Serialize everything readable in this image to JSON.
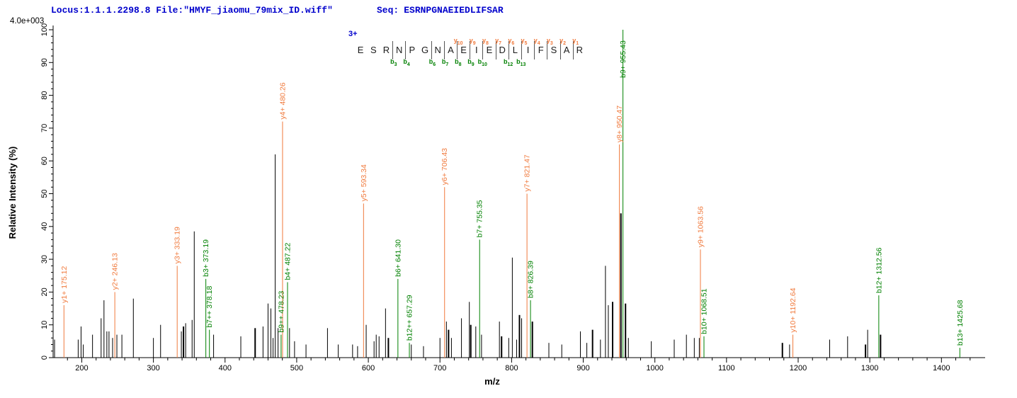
{
  "header": {
    "locus": "Locus:1.1.1.2298.8 File:\"HMYF_jiaomu_79mix_ID.wiff\"",
    "seq_label": "Seq:",
    "seq_value": "ESRNPGNAEIEDLIFSAR",
    "intensity_scale": "4.0e+003"
  },
  "peptide": {
    "charge": "3+",
    "residues": [
      "E",
      "S",
      "R",
      "N",
      "P",
      "G",
      "N",
      "A",
      "E",
      "I",
      "E",
      "D",
      "L",
      "I",
      "F",
      "S",
      "A",
      "R"
    ],
    "cleavages": [
      {
        "after": 3,
        "b": "b3"
      },
      {
        "after": 4,
        "b": "b4"
      },
      {
        "after": 6,
        "b": "b6"
      },
      {
        "after": 7,
        "b": "b7"
      },
      {
        "after": 8,
        "b": "b8",
        "y": "y10"
      },
      {
        "after": 9,
        "b": "b9",
        "y": "y9"
      },
      {
        "after": 10,
        "b": "b10",
        "y": "y8"
      },
      {
        "after": 11,
        "y": "y7"
      },
      {
        "after": 12,
        "b": "b12",
        "y": "y6"
      },
      {
        "after": 13,
        "b": "b13",
        "y": "y5"
      },
      {
        "after": 14,
        "y": "y4"
      },
      {
        "after": 15,
        "y": "y3"
      },
      {
        "after": 16,
        "y": "y2"
      },
      {
        "after": 17,
        "y": "y1"
      }
    ]
  },
  "chart_data": {
    "type": "bar",
    "title": "",
    "xlabel": "m/z",
    "ylabel": "Relative  Intensity (%)",
    "xlim": [
      160,
      1460
    ],
    "ylim": [
      0,
      100
    ],
    "x_major_ticks": [
      200,
      300,
      400,
      500,
      600,
      700,
      800,
      900,
      1000,
      1100,
      1200,
      1300,
      1400
    ],
    "x_minor_step": 20,
    "y_major_ticks": [
      0,
      10,
      20,
      30,
      40,
      50,
      60,
      70,
      80,
      90,
      100
    ],
    "y_minor_step": 2,
    "grid": false,
    "legend": "none",
    "labeled_peaks": [
      {
        "label": "y1+ 175.12",
        "ion": "y1+",
        "mz": 175.12,
        "intensity_pct": 16,
        "series": "y"
      },
      {
        "label": "y2+ 246.13",
        "ion": "y2+",
        "mz": 246.13,
        "intensity_pct": 20,
        "series": "y"
      },
      {
        "label": "y3+ 333.19",
        "ion": "y3+",
        "mz": 333.19,
        "intensity_pct": 28,
        "series": "y"
      },
      {
        "label": "b3+ 373.19",
        "ion": "b3+",
        "mz": 373.19,
        "intensity_pct": 24,
        "series": "b"
      },
      {
        "label": "b7++ 378.18",
        "ion": "b7++",
        "mz": 378.18,
        "intensity_pct": 8.5,
        "series": "b"
      },
      {
        "label": "b9++ 478.23",
        "ion": "b9++",
        "mz": 478.23,
        "intensity_pct": 7,
        "series": "b"
      },
      {
        "label": "y4+ 480.26",
        "ion": "y4+",
        "mz": 480.26,
        "intensity_pct": 72,
        "series": "y"
      },
      {
        "label": "b4+ 487.22",
        "ion": "b4+",
        "mz": 487.22,
        "intensity_pct": 23,
        "series": "b"
      },
      {
        "label": "y5+ 593.34",
        "ion": "y5+",
        "mz": 593.34,
        "intensity_pct": 47,
        "series": "y"
      },
      {
        "label": "b6+ 641.30",
        "ion": "b6+",
        "mz": 641.3,
        "intensity_pct": 24,
        "series": "b"
      },
      {
        "label": "b12++ 657.29",
        "ion": "b12++",
        "mz": 657.29,
        "intensity_pct": 4.5,
        "series": "b"
      },
      {
        "label": "y6+ 706.43",
        "ion": "y6+",
        "mz": 706.43,
        "intensity_pct": 52,
        "series": "y"
      },
      {
        "label": "b7+ 755.35",
        "ion": "b7+",
        "mz": 755.35,
        "intensity_pct": 36,
        "series": "b"
      },
      {
        "label": "y7+ 821.47",
        "ion": "y7+",
        "mz": 821.47,
        "intensity_pct": 50,
        "series": "y"
      },
      {
        "label": "b8+ 826.39",
        "ion": "b8+",
        "mz": 826.39,
        "intensity_pct": 17.5,
        "series": "b"
      },
      {
        "label": "y8+ 950.47",
        "ion": "y8+",
        "mz": 950.47,
        "intensity_pct": 65,
        "series": "y"
      },
      {
        "label": "b9+ 955.43",
        "ion": "b9+",
        "mz": 955.43,
        "intensity_pct": 100,
        "series": "b"
      },
      {
        "label": "y9+ 1063.56",
        "ion": "y9+",
        "mz": 1063.56,
        "intensity_pct": 33,
        "series": "y"
      },
      {
        "label": "b10+ 1068.51",
        "ion": "b10+",
        "mz": 1068.51,
        "intensity_pct": 6.5,
        "series": "b"
      },
      {
        "label": "y10+ 1192.64",
        "ion": "y10+",
        "mz": 1192.64,
        "intensity_pct": 7,
        "series": "y"
      },
      {
        "label": "b12+ 1312.56",
        "ion": "b12+",
        "mz": 1312.56,
        "intensity_pct": 19,
        "series": "b"
      },
      {
        "label": "b13+ 1425.68",
        "ion": "b13+",
        "mz": 1425.68,
        "intensity_pct": 3,
        "series": "b"
      }
    ],
    "unlabeled_peaks": [
      [
        162,
        5.5,
        1
      ],
      [
        195,
        5.5,
        1
      ],
      [
        199,
        9.5,
        1
      ],
      [
        202,
        4,
        1
      ],
      [
        215,
        7,
        1
      ],
      [
        227,
        12,
        1
      ],
      [
        231,
        17.5,
        1
      ],
      [
        235,
        8,
        1
      ],
      [
        238,
        8,
        1
      ],
      [
        243,
        6,
        1
      ],
      [
        249,
        7,
        1
      ],
      [
        256,
        7,
        1
      ],
      [
        272,
        18,
        1
      ],
      [
        300,
        6,
        1
      ],
      [
        310,
        10,
        1
      ],
      [
        339,
        8,
        1
      ],
      [
        342,
        9.5,
        2
      ],
      [
        345,
        10.5,
        1
      ],
      [
        354,
        11.5,
        1
      ],
      [
        357,
        38.5,
        1
      ],
      [
        384,
        7,
        1
      ],
      [
        422,
        6.5,
        1
      ],
      [
        442,
        9,
        2
      ],
      [
        453,
        9.5,
        1
      ],
      [
        460,
        16.5,
        1
      ],
      [
        464,
        15,
        1
      ],
      [
        467,
        6,
        1
      ],
      [
        470,
        62,
        1
      ],
      [
        474,
        9,
        1
      ],
      [
        490,
        9,
        1
      ],
      [
        497,
        5,
        1
      ],
      [
        513,
        4,
        1
      ],
      [
        543,
        9,
        1
      ],
      [
        558,
        4,
        1
      ],
      [
        578,
        4,
        1
      ],
      [
        585,
        3.5,
        1
      ],
      [
        597,
        10,
        1
      ],
      [
        608,
        5,
        1
      ],
      [
        611,
        7,
        1
      ],
      [
        615,
        6.5,
        1
      ],
      [
        624,
        15,
        1
      ],
      [
        628,
        6,
        2
      ],
      [
        660,
        4,
        1
      ],
      [
        677,
        3.5,
        1
      ],
      [
        700,
        6,
        1
      ],
      [
        709,
        11,
        1
      ],
      [
        712,
        8.5,
        2
      ],
      [
        716,
        6,
        1
      ],
      [
        730,
        12,
        1
      ],
      [
        741,
        17,
        1
      ],
      [
        743,
        10,
        2
      ],
      [
        750,
        9.5,
        1
      ],
      [
        758,
        7,
        1
      ],
      [
        783,
        11,
        1
      ],
      [
        786,
        6.5,
        2
      ],
      [
        796,
        6,
        1
      ],
      [
        801,
        30.5,
        1
      ],
      [
        807,
        5.5,
        1
      ],
      [
        811,
        13,
        2
      ],
      [
        814,
        12,
        1
      ],
      [
        829,
        11,
        2
      ],
      [
        852,
        4.5,
        1
      ],
      [
        870,
        4,
        1
      ],
      [
        896,
        8,
        1
      ],
      [
        905,
        4.5,
        1
      ],
      [
        913,
        8.5,
        2
      ],
      [
        924,
        5.5,
        1
      ],
      [
        931,
        28,
        1
      ],
      [
        935,
        16,
        1
      ],
      [
        941,
        17,
        2
      ],
      [
        952.6,
        44,
        2
      ],
      [
        959,
        16.5,
        2
      ],
      [
        963,
        6,
        1
      ],
      [
        995,
        5,
        1
      ],
      [
        1027,
        5.5,
        1
      ],
      [
        1044,
        7,
        1
      ],
      [
        1055,
        6,
        1
      ],
      [
        1062,
        6,
        1
      ],
      [
        1178,
        4.5,
        2
      ],
      [
        1188,
        4,
        1
      ],
      [
        1244,
        5.5,
        1
      ],
      [
        1269,
        6.5,
        1
      ],
      [
        1294,
        4,
        2
      ],
      [
        1297,
        8.5,
        1
      ],
      [
        1315,
        7,
        2
      ]
    ]
  },
  "colors": {
    "y_ion": "#f07a3d",
    "b_ion": "#008000",
    "header_text": "#0000cc",
    "peak_default": "#000000",
    "axis": "#000000"
  }
}
